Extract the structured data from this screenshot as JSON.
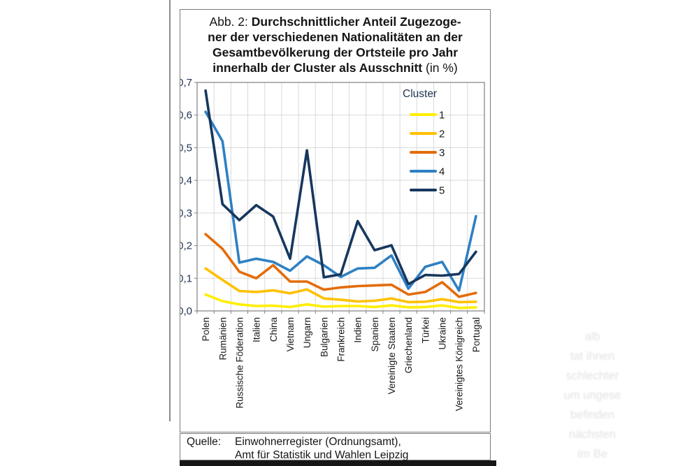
{
  "figure": {
    "title": {
      "line1_prefix": "Abb. 2: ",
      "line1_bold": "Durchschnittlicher Anteil Zugezoge-",
      "line2_bold": "ner der verschiedenen Nationalitäten an der",
      "line3_bold": "Gesamtbevölkerung der Ortsteile pro Jahr",
      "line4_bold": "innerhalb der Cluster als Ausschnitt",
      "line4_suffix": " (in %)"
    }
  },
  "source": {
    "label": "Quelle:",
    "line1": "Einwohnerregister (Ordnungsamt),",
    "line2": "Amt für Statistik und Wahlen Leipzig"
  },
  "ghost": {
    "lines": [
      "alb",
      "tat ihnen",
      "schlechter",
      "um ungese",
      "befinden",
      "nächsten",
      "Im Be"
    ]
  },
  "chart_data": {
    "type": "line",
    "title": "Abb. 2: Durchschnittlicher Anteil Zugezogener der verschiedenen Nationalitäten an der Gesamtbevölkerung der Ortsteile pro Jahr innerhalb der Cluster als Ausschnitt (in %)",
    "legend_title": "Cluster",
    "legend_position": "inside-top-right",
    "grid": true,
    "ylim": [
      0.0,
      0.7
    ],
    "ytick_step": 0.1,
    "ytick_labels": [
      "0,0",
      "0,1",
      "0,2",
      "0,3",
      "0,4",
      "0,5",
      "0,6",
      "0,7"
    ],
    "axis_label_color": "#1f3250",
    "grid_color": "#d9d9d9",
    "frame_color": "#808080",
    "categories": [
      "Polen",
      "Rumänien",
      "Russische Föderation",
      "Italien",
      "China",
      "Vietnam",
      "Ungarn",
      "Bulgarien",
      "Frankreich",
      "Indien",
      "Spanien",
      "Vereinigte Staaten",
      "Griechenland",
      "Türkei",
      "Ukraine",
      "Vereinigtes Königreich",
      "Portugal"
    ],
    "series": [
      {
        "name": "1",
        "color": "#ffee00",
        "values": [
          0.05,
          0.03,
          0.02,
          0.015,
          0.016,
          0.012,
          0.02,
          0.013,
          0.015,
          0.015,
          0.012,
          0.017,
          0.011,
          0.012,
          0.017,
          0.009,
          0.011
        ]
      },
      {
        "name": "2",
        "color": "#ffc000",
        "values": [
          0.13,
          0.095,
          0.061,
          0.058,
          0.063,
          0.054,
          0.066,
          0.038,
          0.034,
          0.029,
          0.031,
          0.038,
          0.027,
          0.028,
          0.036,
          0.027,
          0.028
        ]
      },
      {
        "name": "3",
        "color": "#e36c0a",
        "values": [
          0.235,
          0.19,
          0.12,
          0.1,
          0.14,
          0.09,
          0.09,
          0.065,
          0.072,
          0.076,
          0.078,
          0.08,
          0.05,
          0.058,
          0.088,
          0.043,
          0.055
        ]
      },
      {
        "name": "4",
        "color": "#2e80c4",
        "values": [
          0.61,
          0.52,
          0.148,
          0.16,
          0.15,
          0.123,
          0.167,
          0.14,
          0.104,
          0.13,
          0.132,
          0.17,
          0.068,
          0.135,
          0.15,
          0.062,
          0.29
        ]
      },
      {
        "name": "5",
        "color": "#17375e",
        "values": [
          0.675,
          0.327,
          0.278,
          0.324,
          0.289,
          0.16,
          0.492,
          0.103,
          0.112,
          0.275,
          0.186,
          0.201,
          0.082,
          0.11,
          0.108,
          0.113,
          0.181
        ]
      }
    ]
  }
}
